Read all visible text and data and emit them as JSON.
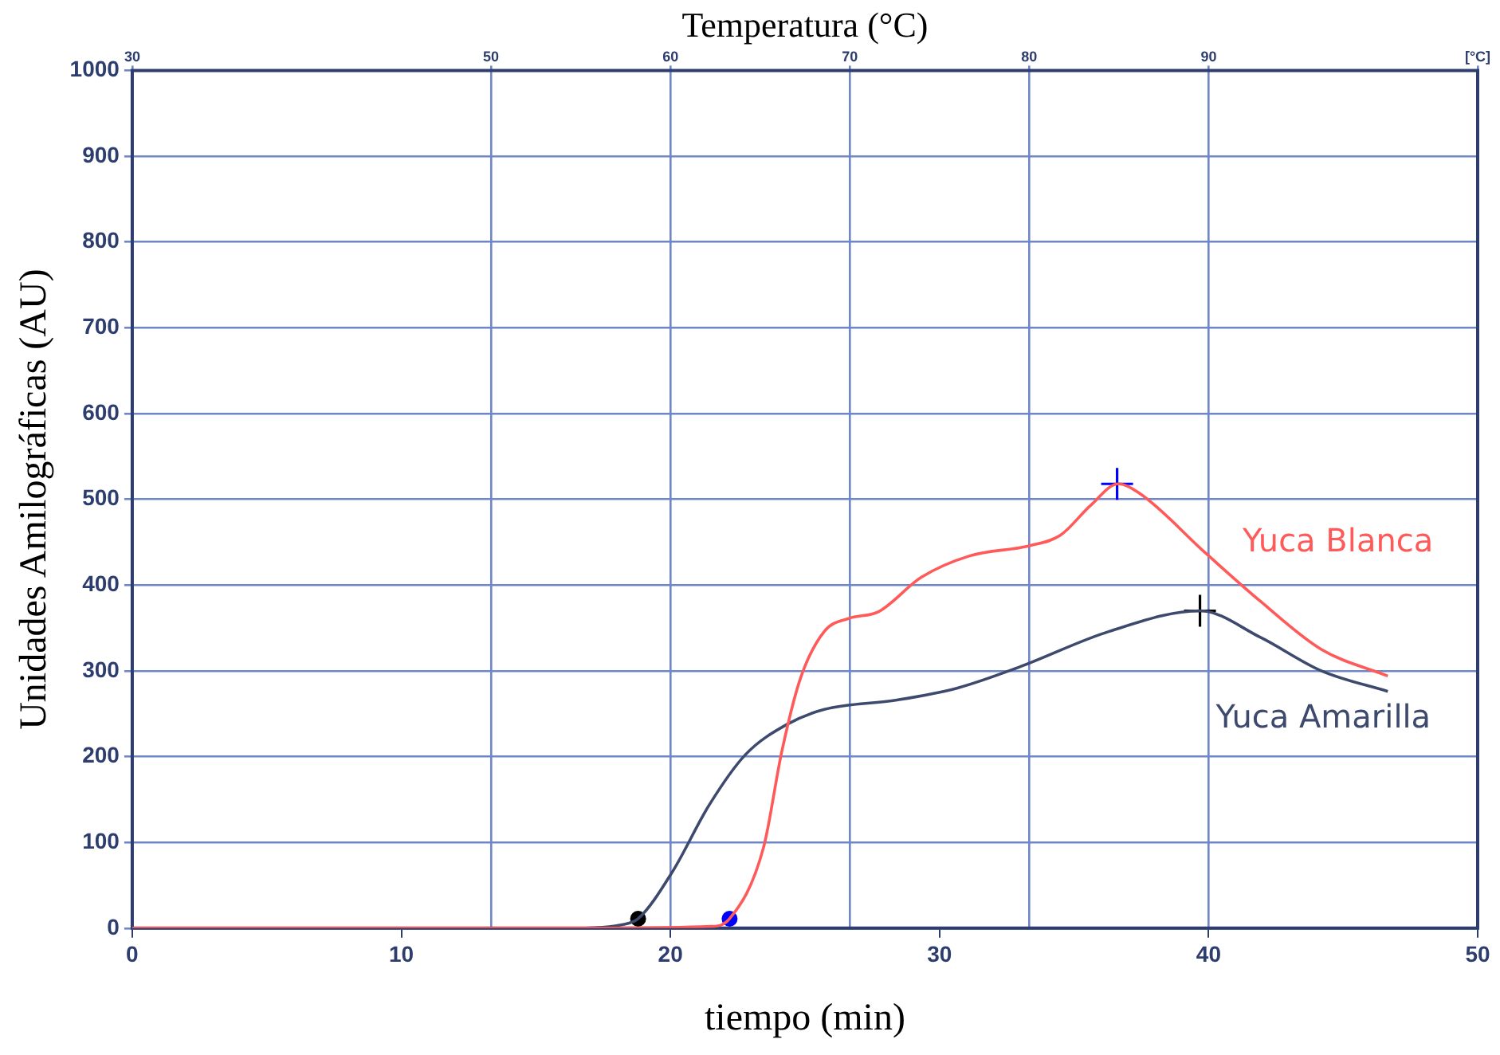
{
  "chart_data": {
    "type": "line",
    "xlabel": "tiempo (min)",
    "ylabel": "Unidades Amilográficas (AU)",
    "x2label": "Temperatura (°C)",
    "xlim": [
      0,
      50
    ],
    "xticks": [
      0,
      10,
      20,
      30,
      40,
      50
    ],
    "x2lim": [
      30,
      105
    ],
    "x2ticks": [
      30,
      50,
      60,
      70,
      80,
      90,
      {
        "value": 105,
        "label": "[°C]"
      }
    ],
    "ylim": [
      0,
      1000
    ],
    "yticks": [
      0,
      100,
      200,
      300,
      400,
      500,
      600,
      700,
      800,
      900,
      1000
    ],
    "grid": true,
    "legend": false,
    "series": [
      {
        "name": "Yuca Blanca",
        "marker": "none",
        "color": "#ff5a5a",
        "x": [
          0,
          17,
          21.5,
          22.2,
          23.46,
          24.14,
          24.82,
          25.72,
          26.62,
          27.74,
          29.32,
          31.12,
          33.37,
          34.49,
          35.62,
          36.64,
          37.43,
          39.9,
          41.93,
          44.19,
          46.66
        ],
        "values": [
          0,
          0,
          2,
          11,
          94,
          206,
          290,
          346,
          361,
          369,
          409,
          434,
          446,
          458,
          493,
          518,
          507,
          437,
          381,
          325,
          294
        ]
      },
      {
        "name": "Yuca Amarilla",
        "marker": "none",
        "color": "#3d4a6e",
        "x": [
          0,
          16.5,
          18.2,
          18.8,
          20.08,
          21.43,
          22.78,
          24.36,
          25.72,
          28.42,
          30.67,
          32.93,
          36.31,
          39.68,
          41.93,
          44.19,
          46.66
        ],
        "values": [
          0,
          0,
          4,
          11,
          66,
          143,
          202,
          238,
          255,
          266,
          280,
          304,
          346,
          370,
          339,
          300,
          276
        ]
      },
      {
        "type": "scatter",
        "marker": "circle",
        "color": "#0000ff",
        "x": [
          22.2
        ],
        "values": [
          11
        ]
      },
      {
        "type": "scatter",
        "marker": "circle",
        "color": "#000000",
        "x": [
          18.8
        ],
        "values": [
          11
        ]
      },
      {
        "type": "scatter",
        "marker": "cross",
        "color": "#0000ff",
        "x": [
          36.6
        ],
        "values": [
          518
        ]
      },
      {
        "type": "scatter",
        "marker": "cross",
        "color": "#000000",
        "x": [
          39.68
        ],
        "values": [
          370
        ]
      }
    ]
  }
}
